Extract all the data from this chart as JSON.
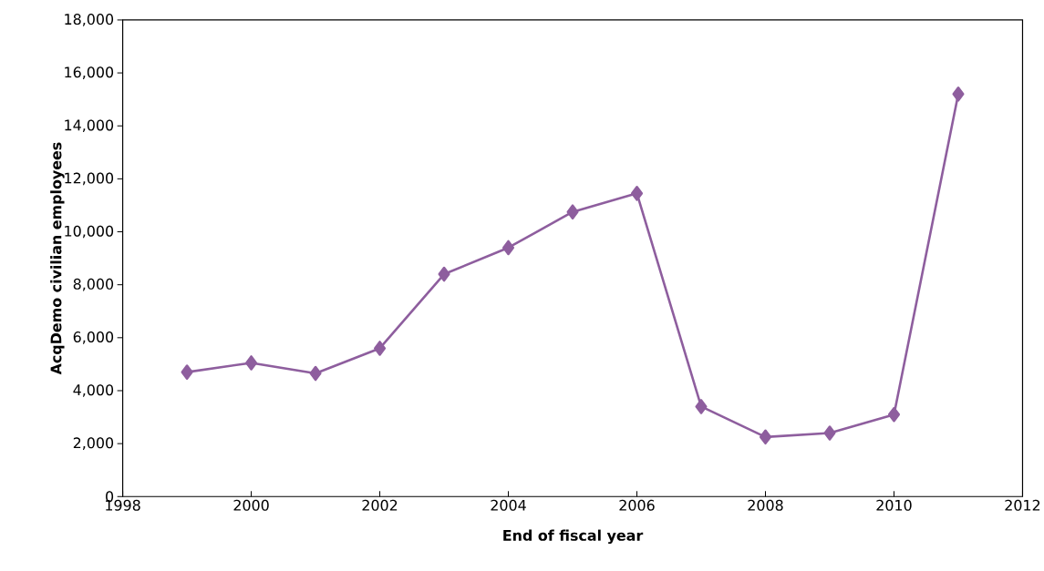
{
  "chart_data": {
    "type": "line",
    "xlabel": "End of fiscal year",
    "ylabel": "AcqDemo civilian employees",
    "x": [
      1999,
      2000,
      2001,
      2002,
      2003,
      2004,
      2005,
      2006,
      2007,
      2008,
      2009,
      2010,
      2011
    ],
    "series": [
      {
        "color": "#8e5e9e",
        "values": [
          4700,
          5050,
          4650,
          5600,
          8400,
          9400,
          10750,
          11450,
          3400,
          2250,
          2400,
          3100,
          15200
        ]
      }
    ],
    "xlim": [
      1998,
      2012
    ],
    "xticks": [
      1998,
      2000,
      2002,
      2004,
      2006,
      2008,
      2010,
      2012
    ],
    "ylim": [
      0,
      18000
    ],
    "yticks": [
      0,
      {
        "value": 2000,
        "label": "2,000"
      },
      {
        "value": 4000,
        "label": "4,000"
      },
      {
        "value": 6000,
        "label": "6,000"
      },
      {
        "value": 8000,
        "label": "8,000"
      },
      {
        "value": 10000,
        "label": "10,000"
      },
      {
        "value": 12000,
        "label": "12,000"
      },
      {
        "value": 14000,
        "label": "14,000"
      },
      {
        "value": 16000,
        "label": "16,000"
      },
      {
        "value": 18000,
        "label": "18,000"
      }
    ],
    "grid": false,
    "marker": "diamond",
    "line_style": "solid"
  }
}
